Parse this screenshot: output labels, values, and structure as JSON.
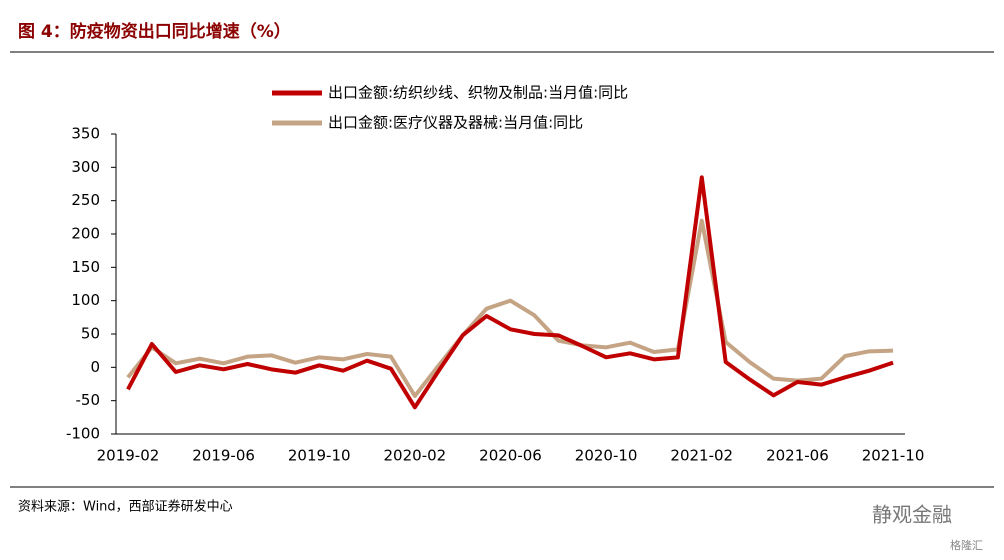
{
  "chart_data": {
    "type": "line",
    "title": "图 4：防疫物资出口同比增速（%）",
    "source": "资料来源：Wind，西部证券研发中心",
    "watermark": "静观金融",
    "watermark_small": "格隆汇",
    "categories": [
      "2019-02",
      null,
      null,
      null,
      "2019-06",
      null,
      null,
      null,
      "2019-10",
      null,
      null,
      null,
      "2020-02",
      null,
      null,
      null,
      "2020-06",
      null,
      null,
      null,
      "2020-10",
      null,
      null,
      null,
      "2021-02",
      null,
      null,
      null,
      "2021-06",
      null,
      null,
      null,
      "2021-10"
    ],
    "series": [
      {
        "name": "出口金额:纺织纱线、织物及制品:当月值:同比",
        "color": "#c00000",
        "values": [
          -33,
          35,
          -7,
          3,
          -3,
          5,
          -3,
          -8,
          3,
          -5,
          10,
          -2,
          -60,
          -5,
          48,
          77,
          57,
          50,
          48,
          32,
          15,
          21,
          12,
          15,
          285,
          8,
          -18,
          -42,
          -22,
          -26,
          -15,
          -5,
          7
        ]
      },
      {
        "name": "出口金额:医疗仪器及器械:当月值:同比",
        "color": "#c4a484",
        "values": [
          -15,
          30,
          6,
          13,
          6,
          16,
          18,
          7,
          15,
          12,
          20,
          16,
          -43,
          3,
          48,
          88,
          100,
          78,
          40,
          33,
          30,
          37,
          23,
          27,
          220,
          38,
          8,
          -17,
          -20,
          -17,
          17,
          24,
          25
        ]
      }
    ],
    "ylim": [
      -100,
      350
    ],
    "yticks": [
      -100,
      -50,
      0,
      50,
      100,
      150,
      200,
      250,
      300,
      350
    ]
  }
}
